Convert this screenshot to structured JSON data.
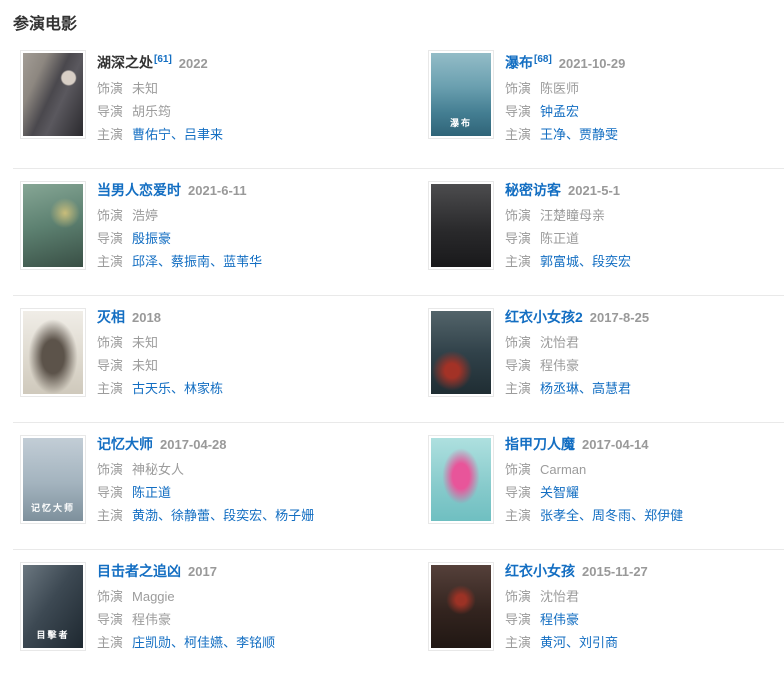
{
  "page": {
    "heading": "参演电影"
  },
  "colors": {
    "link_blue": "#136ec2",
    "muted_gray": "#999999",
    "title_dark": "#333333",
    "divider": "#e9e9e9"
  },
  "labels": {
    "role": "饰演",
    "director": "导演",
    "cast": "主演",
    "separator": "、"
  },
  "movies": [
    {
      "title": "湖深之处",
      "title_is_link": false,
      "ref": "[61]",
      "date": "2022",
      "role": "未知",
      "director": "胡乐筠",
      "director_is_link": false,
      "cast": [
        "曹佑宁",
        "吕聿来"
      ]
    },
    {
      "title": "瀑布",
      "title_is_link": true,
      "ref": "[68]",
      "date": "2021-10-29",
      "role": "陈医师",
      "director": "钟孟宏",
      "director_is_link": true,
      "cast": [
        "王净",
        "贾静雯"
      ],
      "poster_text": "瀑布"
    },
    {
      "title": "当男人恋爱时",
      "title_is_link": true,
      "ref": "",
      "date": "2021-6-11",
      "role": "浩婷",
      "director": "殷振豪",
      "director_is_link": true,
      "cast": [
        "邱泽",
        "蔡振南",
        "蓝苇华"
      ]
    },
    {
      "title": "秘密访客",
      "title_is_link": true,
      "ref": "",
      "date": "2021-5-1",
      "role": "汪楚瞳母亲",
      "director": "陈正道",
      "director_is_link": false,
      "cast": [
        "郭富城",
        "段奕宏"
      ]
    },
    {
      "title": "灭相",
      "title_is_link": true,
      "ref": "",
      "date": "2018",
      "role": "未知",
      "director": "未知",
      "director_is_link": false,
      "cast": [
        "古天乐",
        "林家栋"
      ]
    },
    {
      "title": "红衣小女孩2",
      "title_is_link": true,
      "ref": "",
      "date": "2017-8-25",
      "role": "沈怡君",
      "director": "程伟豪",
      "director_is_link": false,
      "cast": [
        "杨丞琳",
        "高慧君"
      ]
    },
    {
      "title": "记忆大师",
      "title_is_link": true,
      "ref": "",
      "date": "2017-04-28",
      "role": "神秘女人",
      "director": "陈正道",
      "director_is_link": true,
      "cast": [
        "黄渤",
        "徐静蕾",
        "段奕宏",
        "杨子姗"
      ],
      "poster_text": "记忆大师"
    },
    {
      "title": "指甲刀人魔",
      "title_is_link": true,
      "ref": "",
      "date": "2017-04-14",
      "role": "Carman",
      "director": "关智耀",
      "director_is_link": true,
      "cast": [
        "张孝全",
        "周冬雨",
        "郑伊健"
      ]
    },
    {
      "title": "目击者之追凶",
      "title_is_link": true,
      "ref": "",
      "date": "2017",
      "role": "Maggie",
      "director": "程伟豪",
      "director_is_link": false,
      "cast": [
        "庄凯勋",
        "柯佳嬿",
        "李铭顺"
      ],
      "poster_text": "目擊者"
    },
    {
      "title": "红衣小女孩",
      "title_is_link": true,
      "ref": "",
      "date": "2015-11-27",
      "role": "沈怡君",
      "director": "程伟豪",
      "director_is_link": true,
      "cast": [
        "黄河",
        "刘引商"
      ]
    }
  ]
}
